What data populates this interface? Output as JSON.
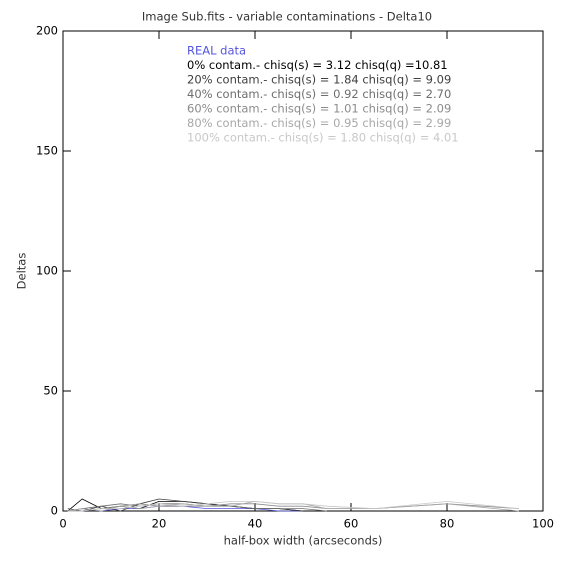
{
  "chart_data": {
    "type": "line",
    "title": "Image Sub.fits - variable contaminations - Delta10",
    "x_label": "half-box width (arcseconds)",
    "y_label": "Deltas",
    "x": [
      1,
      4,
      8,
      12,
      16,
      20,
      25,
      30,
      35,
      40,
      45,
      50,
      55,
      65,
      80,
      95
    ],
    "series": [
      {
        "name": "REAL data",
        "color": "#5555dd",
        "values": [
          0,
          1,
          0,
          1,
          1,
          2,
          2,
          1,
          1,
          1,
          0,
          0,
          null,
          null,
          null,
          null
        ]
      },
      {
        "name": "0% contam.- chisq(s) = 3.12 chisq(q) =10.81",
        "color": "#000000",
        "values": [
          0,
          5,
          1,
          2,
          1,
          4,
          4,
          3,
          2,
          1,
          1,
          0,
          null,
          null,
          null,
          null
        ]
      },
      {
        "name": "20% contam.- chisq(s) = 1.84 chisq(q) = 9.09",
        "color": "#404040",
        "values": [
          1,
          0,
          2,
          0,
          3,
          5,
          4,
          3,
          2,
          1,
          1,
          0,
          null,
          null,
          null,
          null
        ]
      },
      {
        "name": "40% contam.- chisq(s) = 0.92 chisq(q) = 2.70",
        "color": "#6e6e6e",
        "values": [
          0,
          1,
          2,
          3,
          2,
          3,
          3,
          2,
          2,
          1,
          1,
          1,
          0,
          null,
          null,
          null
        ]
      },
      {
        "name": "60% contam.- chisq(s) = 1.01 chisq(q) = 2.09",
        "color": "#8c8c8c",
        "values": [
          0,
          0,
          1,
          2,
          3,
          2,
          2,
          2,
          3,
          3,
          2,
          2,
          1,
          1,
          3,
          1
        ]
      },
      {
        "name": "80% contam.- chisq(s) = 0.95 chisq(q) = 2.99",
        "color": "#a8a8a8",
        "values": [
          0,
          1,
          0,
          2,
          1,
          2,
          3,
          2,
          2,
          4,
          3,
          3,
          1,
          1,
          3,
          0
        ]
      },
      {
        "name": "100% contam.- chisq(s) = 1.80 chisq(q) = 4.01",
        "color": "#c8c8c8",
        "values": [
          0,
          0,
          1,
          1,
          2,
          3,
          2,
          3,
          4,
          4,
          3,
          3,
          2,
          1,
          4,
          1
        ]
      }
    ],
    "xlim": [
      0,
      100
    ],
    "xticks": [
      0,
      20,
      40,
      60,
      80,
      100
    ],
    "ylim": [
      0,
      200
    ],
    "yticks": [
      0,
      50,
      100,
      150,
      200
    ]
  }
}
